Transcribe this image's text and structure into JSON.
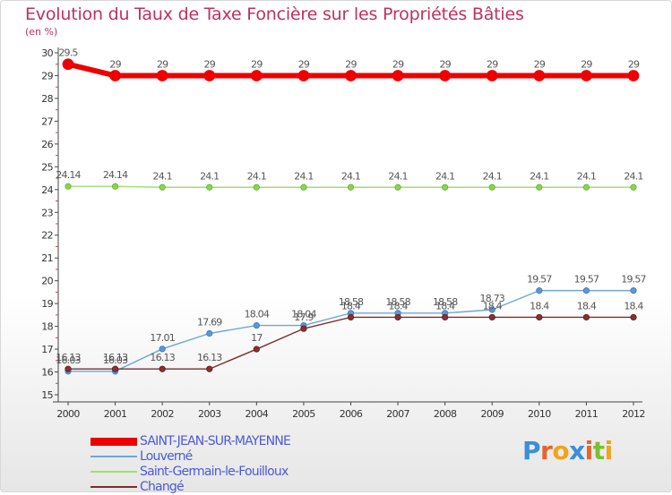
{
  "title": "Evolution du Taux de Taxe Foncière sur les Propriétés Bâties",
  "unit": "(en %)",
  "logo": {
    "text": "Proxiti",
    "letters": [
      "P",
      "r",
      "o",
      "x",
      "i",
      "t",
      "i"
    ],
    "letter_colors": [
      "#3a8fd8",
      "#e8632c",
      "#f2a31a",
      "#3a8fd8",
      "#e8632c",
      "#7cbf2f",
      "#f2a31a"
    ]
  },
  "chart_data": {
    "type": "line",
    "title": "Evolution du Taux de Taxe Foncière sur les Propriétés Bâties",
    "ylabel": "(en %)",
    "xlabel": "",
    "x": [
      "2000",
      "2001",
      "2002",
      "2003",
      "2004",
      "2005",
      "2006",
      "2007",
      "2008",
      "2009",
      "2010",
      "2011",
      "2012"
    ],
    "ylim": [
      15,
      30
    ],
    "yticks": [
      "15",
      "16",
      "17",
      "18",
      "19",
      "20",
      "21",
      "22",
      "23",
      "24",
      "25",
      "26",
      "27",
      "28",
      "29",
      "30"
    ],
    "grid": false,
    "legend_position": "bottom-left",
    "series": [
      {
        "name": "SAINT-JEAN-SUR-MAYENNE",
        "color": "#ee0000",
        "values": [
          29.5,
          29,
          29,
          29,
          29,
          29,
          29,
          29,
          29,
          29,
          29,
          29,
          29
        ],
        "labels": [
          "29.5",
          "29",
          "29",
          "29",
          "29",
          "29",
          "29",
          "29",
          "29",
          "29",
          "29",
          "29",
          "29"
        ]
      },
      {
        "name": "Louverné",
        "color": "#6ea6d8",
        "values": [
          16.03,
          16.03,
          17.01,
          17.69,
          18.04,
          18.04,
          18.58,
          18.58,
          18.58,
          18.73,
          19.57,
          19.57,
          19.57
        ],
        "labels": [
          "16.03",
          "16.03",
          "17.01",
          "17.69",
          "18.04",
          "18.04",
          "18.58",
          "18.58",
          "18.58",
          "18.73",
          "19.57",
          "19.57",
          "19.57"
        ]
      },
      {
        "name": "Saint-Germain-le-Fouilloux",
        "color": "#9be26a",
        "values": [
          24.14,
          24.14,
          24.1,
          24.1,
          24.1,
          24.1,
          24.1,
          24.1,
          24.1,
          24.1,
          24.1,
          24.1,
          24.1
        ],
        "labels": [
          "24.14",
          "24.14",
          "24.1",
          "24.1",
          "24.1",
          "24.1",
          "24.1",
          "24.1",
          "24.1",
          "24.1",
          "24.1",
          "24.1",
          "24.1"
        ]
      },
      {
        "name": "Changé",
        "color": "#7b2d2d",
        "values": [
          16.13,
          16.13,
          16.13,
          16.13,
          17,
          17.9,
          18.4,
          18.4,
          18.4,
          18.4,
          18.4,
          18.4,
          18.4
        ],
        "labels": [
          "16.13",
          "16.13",
          "16.13",
          "16.13",
          "17",
          "17.9",
          "18.4",
          "18.4",
          "18.4",
          "18.4",
          "18.4",
          "18.4",
          "18.4"
        ]
      }
    ]
  }
}
